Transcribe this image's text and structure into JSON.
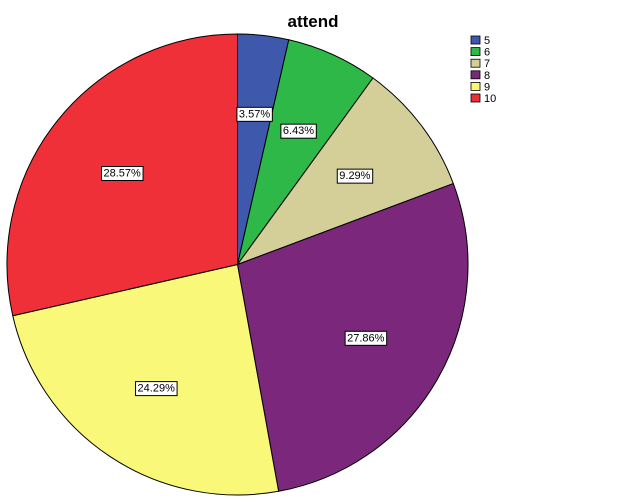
{
  "chart_data": {
    "type": "pie",
    "title": "attend",
    "categories": [
      "5",
      "6",
      "7",
      "8",
      "9",
      "10"
    ],
    "values": [
      3.57,
      6.43,
      9.29,
      27.86,
      24.29,
      28.57
    ],
    "data_labels": [
      "3.57%",
      "6.43%",
      "9.29%",
      "27.86%",
      "24.29%",
      "28.57%"
    ],
    "colors": [
      "#3e58ac",
      "#2eb848",
      "#d4cf98",
      "#7b287c",
      "#faf878",
      "#f03038"
    ],
    "start": "top",
    "direction": "clockwise",
    "legend_position": "top-right"
  }
}
